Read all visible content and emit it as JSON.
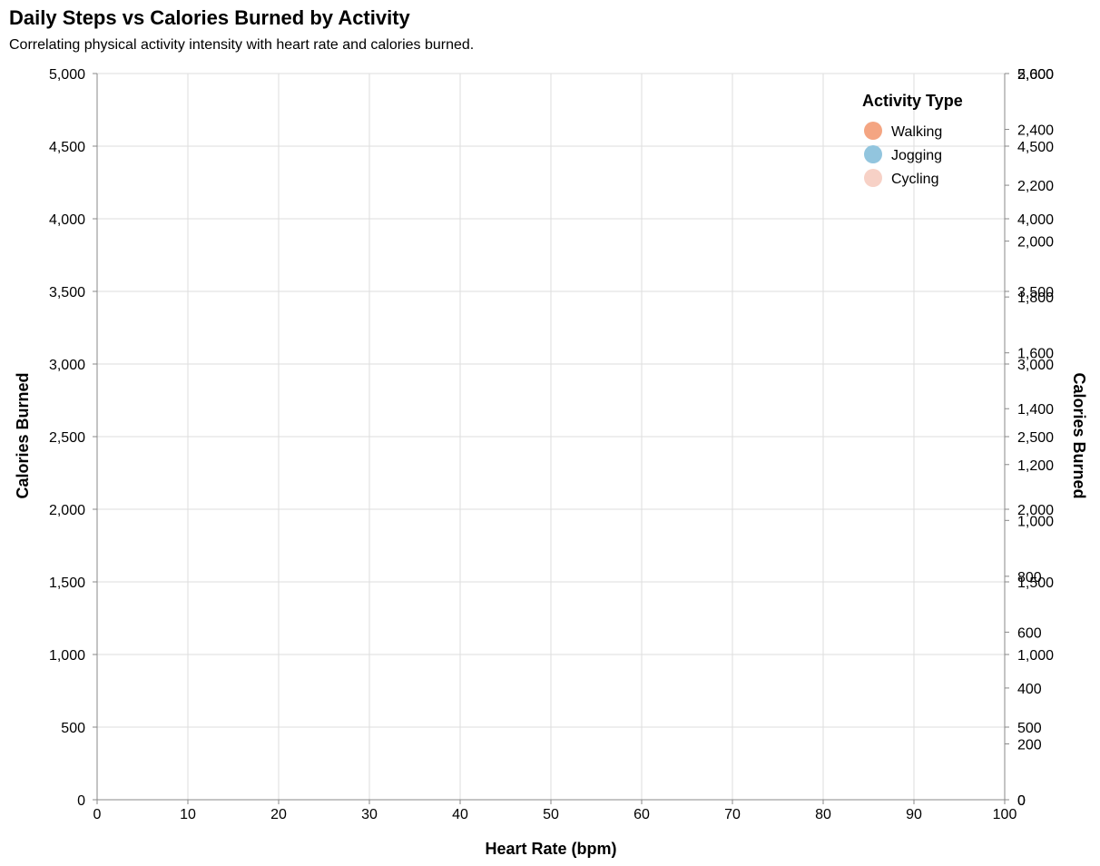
{
  "chart_data": {
    "type": "scatter",
    "title": "Daily Steps vs Calories Burned by Activity",
    "subtitle": "Correlating physical activity intensity with heart rate and calories burned.",
    "xlabel": "Heart Rate (bpm)",
    "ylabel": "Calories Burned",
    "y2label": "Calories Burned",
    "xlim": [
      0,
      100
    ],
    "ylim": [
      0,
      5000
    ],
    "y2lim": [
      0,
      2600
    ],
    "x_ticks": [
      0,
      10,
      20,
      30,
      40,
      50,
      60,
      70,
      80,
      90,
      100
    ],
    "y_ticks": [
      0,
      500,
      1000,
      1500,
      2000,
      2500,
      3000,
      3500,
      4000,
      4500,
      5000
    ],
    "y2_ticks": [
      0,
      200,
      400,
      600,
      800,
      1000,
      1200,
      1400,
      1600,
      1800,
      2000,
      2200,
      2400,
      2600
    ],
    "y3_ticks": [
      0,
      500,
      1000,
      1500,
      2000,
      2500,
      3000,
      3500,
      4000,
      4500,
      5000
    ],
    "grid": true,
    "legend_position": "top-right",
    "legend_title": "Activity Type",
    "series": [
      {
        "name": "Walking",
        "color": "#f4a582",
        "points": []
      },
      {
        "name": "Jogging",
        "color": "#92c5de",
        "points": []
      },
      {
        "name": "Cycling",
        "color": "#f7d1c6",
        "points": []
      }
    ]
  }
}
